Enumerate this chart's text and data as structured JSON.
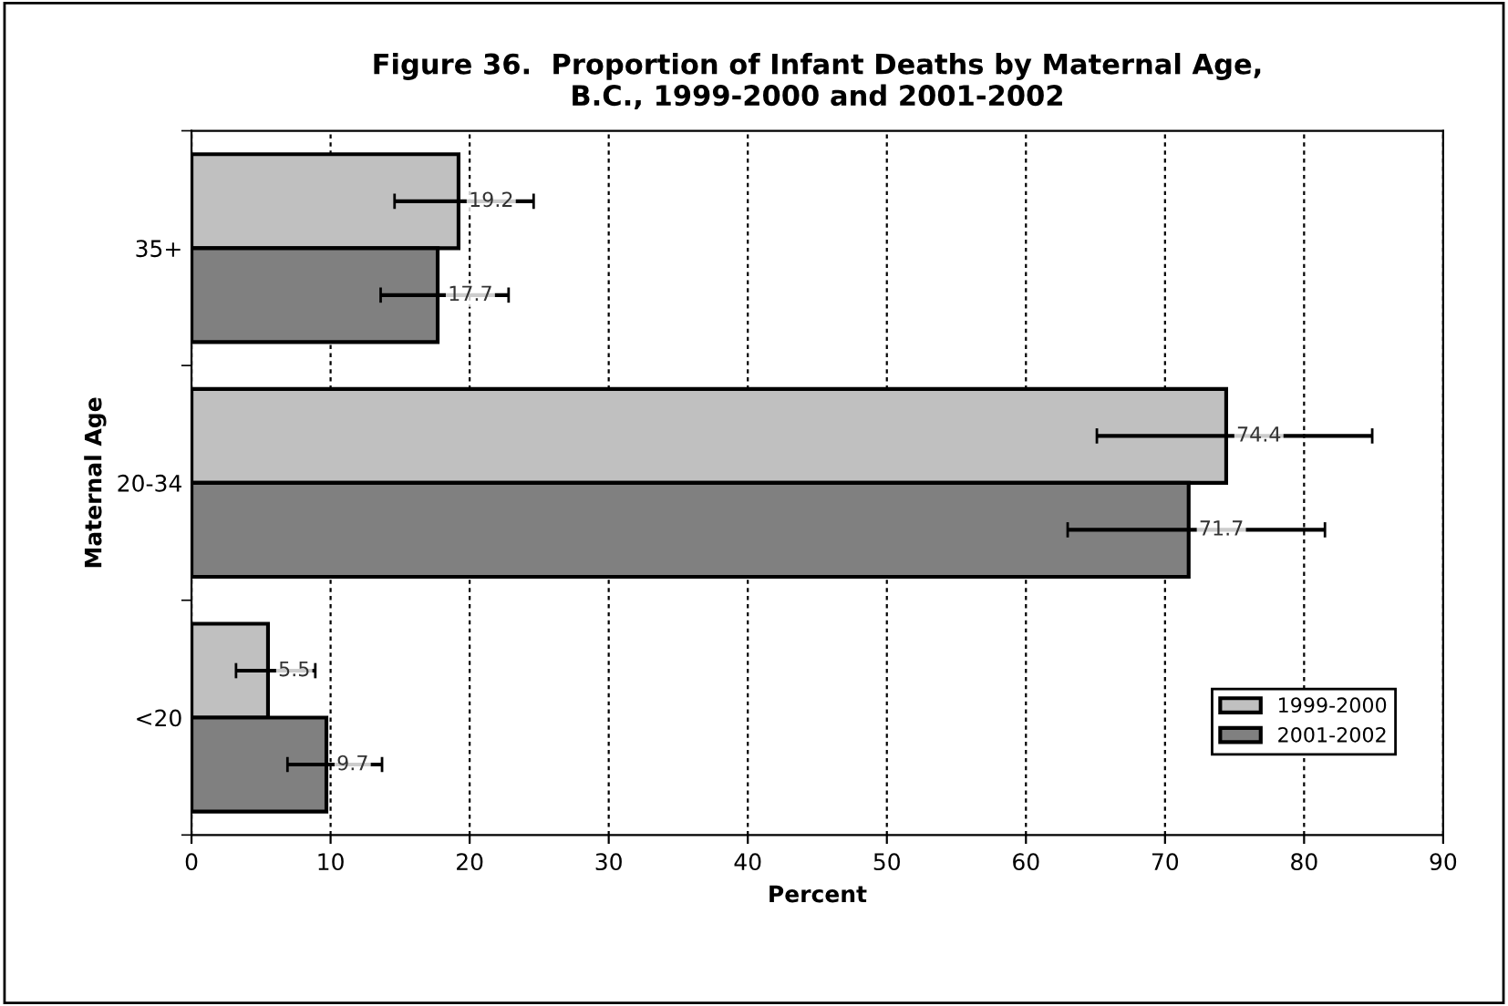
{
  "chart_data": {
    "type": "bar",
    "orientation": "horizontal",
    "title": "Figure 36.  Proportion of Infant Deaths by Maternal Age,\nB.C., 1999-2000 and 2001-2002",
    "xlabel": "Percent",
    "ylabel": "Maternal Age",
    "categories": [
      "35+",
      "20-34",
      "<20"
    ],
    "series": [
      {
        "name": "1999-2000",
        "color": "#c0c0c0",
        "values": [
          19.2,
          74.4,
          5.5
        ],
        "errors": [
          [
            14.6,
            24.6
          ],
          [
            65.1,
            84.9
          ],
          [
            3.2,
            8.9
          ]
        ]
      },
      {
        "name": "2001-2002",
        "color": "#808080",
        "values": [
          17.7,
          71.7,
          9.7
        ],
        "errors": [
          [
            13.6,
            22.8
          ],
          [
            63.0,
            81.5
          ],
          [
            6.9,
            13.7
          ]
        ]
      }
    ],
    "xlim": [
      0,
      90
    ],
    "xticks": [
      0,
      10,
      20,
      30,
      40,
      50,
      60,
      70,
      80,
      90
    ],
    "grid": "x",
    "legend": "bottom right",
    "data_labels": true
  }
}
